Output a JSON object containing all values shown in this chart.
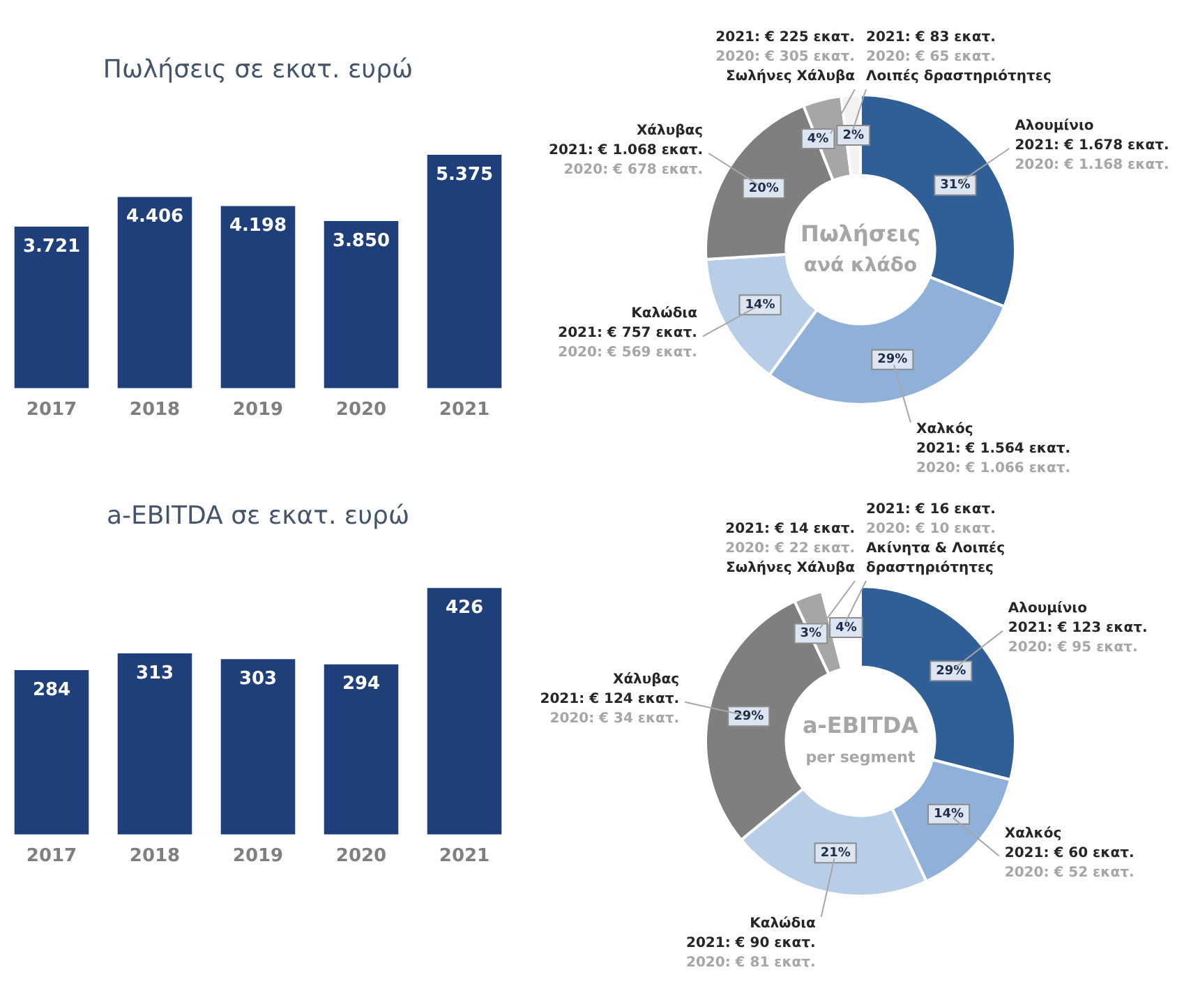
{
  "chart_data": [
    {
      "type": "bar",
      "title": "Πωλήσεις σε εκατ. ευρώ",
      "categories": [
        "2017",
        "2018",
        "2019",
        "2020",
        "2021"
      ],
      "values": [
        3721,
        4406,
        4198,
        3850,
        5375
      ],
      "value_labels": [
        "3.721",
        "4.406",
        "4.198",
        "3.850",
        "5.375"
      ],
      "color": "#1f3f7a",
      "tick_labels": "x",
      "grid": false,
      "legend": false
    },
    {
      "type": "donut",
      "title": "Πωλήσεις",
      "subtitle": "ανά κλάδο",
      "categories": [
        "Αλουμίνιο",
        "Χαλκός",
        "Καλώδια",
        "Χάλυβας",
        "Σωλήνες Χάλυβα",
        "Λοιπές δραστηριότητες"
      ],
      "values": [
        31,
        29,
        14,
        20,
        4,
        2
      ],
      "value_labels": [
        "31%",
        "29%",
        "14%",
        "20%",
        "4%",
        "2%"
      ],
      "colors": [
        "#2f5f96",
        "#8fb0d9",
        "#b8cde6",
        "#7f7f7f",
        "#a6a6a6",
        "#f2f2f2"
      ],
      "annotations": [
        "2021: € 1.678 εκατ.",
        "2020: € 1.168 εκατ.",
        "2021: € 1.564 εκατ.",
        "2020: € 1.066 εκατ.",
        "2021: € 757 εκατ.",
        "2020: € 569 εκατ.",
        "2021: € 1.068 εκατ.",
        "2020: € 678 εκατ.",
        "2021: € 225 εκατ.",
        "2020: € 305 εκατ.",
        "2021: € 83 εκατ.",
        "2020: € 65 εκατ."
      ],
      "legend": false
    },
    {
      "type": "bar",
      "title": "a-EBITDA σε εκατ. ευρώ",
      "categories": [
        "2017",
        "2018",
        "2019",
        "2020",
        "2021"
      ],
      "values": [
        284,
        313,
        303,
        294,
        426
      ],
      "data_labels": true,
      "color": "#1f3f7a",
      "tick_labels": "x",
      "grid": false,
      "legend": false
    },
    {
      "type": "donut",
      "title": "a-EBITDA",
      "subtitle": "per segment",
      "categories": [
        "Αλουμίνιο",
        "Χαλκός",
        "Καλώδια",
        "Χάλυβας",
        "Σωλήνες Χάλυβα",
        "Ακίνητα & Λοιπές δραστηριότητες"
      ],
      "values": [
        29,
        14,
        21,
        29,
        3,
        4
      ],
      "value_labels": [
        "29%",
        "14%",
        "21%",
        "29%",
        "3%",
        "4%"
      ],
      "colors": [
        "#2f5f96",
        "#8fb0d9",
        "#b8cde6",
        "#7f7f7f",
        "#a6a6a6",
        "#ffffff"
      ],
      "annotations": [
        "2021: € 123 εκατ.",
        "2020: € 95 εκατ.",
        "2021: € 60 εκατ.",
        "2020: € 52 εκατ.",
        "2021: € 90 εκατ.",
        "2020: € 81 εκατ.",
        "2021: € 124 εκατ.",
        "2020: € 34 εκατ.",
        "2021: € 14 εκατ.",
        "2020: € 22 εκατ.",
        "2021: € 16 εκατ.",
        "2020: € 10 εκατ."
      ],
      "legend": false
    }
  ]
}
